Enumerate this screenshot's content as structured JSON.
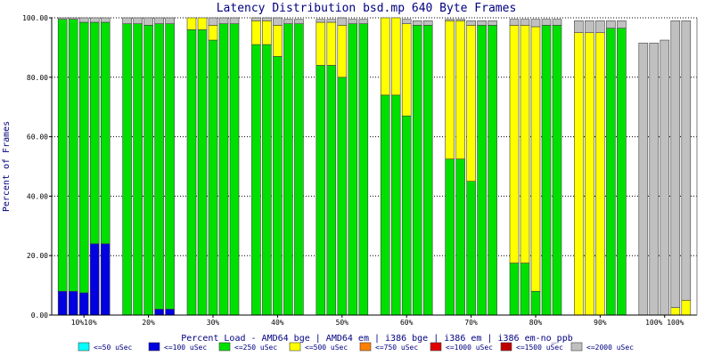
{
  "chart_data": {
    "type": "bar",
    "stacked": true,
    "title": "Latency Distribution bsd.mp 640 Byte Frames",
    "xlabel": "Percent Load - AMD64 bge | AMD64 em | i386 bge | i386 em | i386 em-no_ppb",
    "ylabel": "Percent of Frames",
    "ylim": [
      0,
      100
    ],
    "yticks": [
      "0.00",
      "20.00",
      "40.00",
      "60.00",
      "80.00",
      "100.00"
    ],
    "grid": true,
    "legend_position": "bottom",
    "group_labels": [
      "10%10%",
      "20%",
      "30%",
      "40%",
      "50%",
      "60%",
      "70%",
      "80%",
      "90%",
      "100% 100%"
    ],
    "series": [
      {
        "name": "<=50 uSec",
        "color": "#00ffff"
      },
      {
        "name": "<=100 uSec",
        "color": "#0000e0"
      },
      {
        "name": "<=250 uSec",
        "color": "#00e000"
      },
      {
        "name": "<=500 uSec",
        "color": "#ffff00"
      },
      {
        "name": "<=750 uSec",
        "color": "#ff8000"
      },
      {
        "name": "<=1000 uSec",
        "color": "#e00000"
      },
      {
        "name": "<=1500 uSec",
        "color": "#c00000"
      },
      {
        "name": "<=2000 uSec",
        "color": "#c0c0c0"
      }
    ],
    "groups": [
      {
        "label": "10%",
        "bars": [
          [
            0,
            8,
            91.5,
            0,
            0,
            0,
            0,
            0.5
          ],
          [
            0,
            8,
            91.5,
            0,
            0,
            0,
            0,
            0.5
          ],
          [
            0,
            7.5,
            91,
            0,
            0,
            0,
            0,
            1.5
          ],
          [
            0,
            24,
            74.5,
            0,
            0,
            0,
            0,
            1.5
          ],
          [
            0,
            24,
            74.5,
            0,
            0,
            0,
            0,
            1.5
          ]
        ]
      },
      {
        "label": "20%",
        "bars": [
          [
            0,
            0,
            98,
            0,
            0,
            0,
            0,
            2
          ],
          [
            0,
            0,
            98,
            0,
            0,
            0,
            0,
            2
          ],
          [
            0,
            0,
            97.5,
            0,
            0,
            0,
            0,
            2.5
          ],
          [
            0,
            2,
            96,
            0,
            0,
            0,
            0,
            2
          ],
          [
            0,
            2,
            96,
            0,
            0,
            0,
            0,
            2
          ]
        ]
      },
      {
        "label": "30%",
        "bars": [
          [
            0,
            0,
            96,
            4,
            0,
            0,
            0,
            0
          ],
          [
            0,
            0,
            96,
            4,
            0,
            0,
            0,
            0
          ],
          [
            0,
            0,
            92.5,
            5,
            0,
            0,
            0,
            2.5
          ],
          [
            0,
            0,
            98,
            0,
            0,
            0,
            0,
            2
          ],
          [
            0,
            0,
            98,
            0,
            0,
            0,
            0,
            2
          ]
        ]
      },
      {
        "label": "40%",
        "bars": [
          [
            0,
            0,
            91,
            8,
            0,
            0,
            0,
            1
          ],
          [
            0,
            0,
            91,
            8,
            0,
            0,
            0,
            1
          ],
          [
            0,
            0,
            87,
            10.5,
            0,
            0,
            0,
            2.5
          ],
          [
            0,
            0,
            98,
            0,
            0,
            0,
            0,
            1.5
          ],
          [
            0,
            0,
            98,
            0,
            0,
            0,
            0,
            1.5
          ]
        ]
      },
      {
        "label": "50%",
        "bars": [
          [
            0,
            0,
            84,
            14.5,
            0,
            0,
            0,
            1
          ],
          [
            0,
            0,
            84,
            14.5,
            0,
            0,
            0,
            1
          ],
          [
            0,
            0,
            80,
            17.5,
            0,
            0,
            0,
            2.5
          ],
          [
            0,
            0,
            98,
            0,
            0,
            0,
            0,
            1.5
          ],
          [
            0,
            0,
            98,
            0,
            0,
            0,
            0,
            1.5
          ]
        ]
      },
      {
        "label": "60%",
        "bars": [
          [
            0,
            0,
            74,
            26,
            0,
            0,
            0,
            0
          ],
          [
            0,
            0,
            74,
            26,
            0,
            0,
            0,
            0
          ],
          [
            0,
            0,
            67,
            31,
            0,
            0,
            0,
            1.5
          ],
          [
            0,
            0,
            97.5,
            0,
            0,
            0,
            0,
            1.5
          ],
          [
            0,
            0,
            97.5,
            0,
            0,
            0,
            0,
            1.5
          ]
        ]
      },
      {
        "label": "70%",
        "bars": [
          [
            0,
            0,
            52.5,
            46.5,
            0,
            0,
            0,
            0.5
          ],
          [
            0,
            0,
            52.5,
            46.5,
            0,
            0,
            0,
            0.5
          ],
          [
            0,
            0,
            45,
            52.5,
            0,
            0,
            0,
            1.5
          ],
          [
            0,
            0,
            97.5,
            0,
            0,
            0,
            0,
            1.5
          ],
          [
            0,
            0,
            97.5,
            0,
            0,
            0,
            0,
            1.5
          ]
        ]
      },
      {
        "label": "80%",
        "bars": [
          [
            0,
            0,
            17.5,
            80,
            0,
            0,
            0,
            2
          ],
          [
            0,
            0,
            17.5,
            80,
            0,
            0,
            0,
            2
          ],
          [
            0,
            0,
            8,
            89,
            0,
            0,
            0,
            2.5
          ],
          [
            0,
            0,
            97.5,
            0,
            0,
            0,
            0,
            2
          ],
          [
            0,
            0,
            97.5,
            0,
            0,
            0,
            0,
            2
          ]
        ]
      },
      {
        "label": "90%",
        "bars": [
          [
            0,
            0,
            0,
            95,
            0,
            0,
            0,
            4
          ],
          [
            0,
            0,
            0,
            95,
            0,
            0,
            0,
            4
          ],
          [
            0,
            0,
            0,
            95,
            0,
            0,
            0,
            4
          ],
          [
            0,
            0,
            96.5,
            0,
            0,
            0,
            0,
            2.5
          ],
          [
            0,
            0,
            96.5,
            0,
            0,
            0,
            0,
            2.5
          ]
        ]
      },
      {
        "label": "100%",
        "bars": [
          [
            0,
            0,
            0,
            0,
            0,
            0,
            0,
            91.5
          ],
          [
            0,
            0,
            0,
            0,
            0,
            0,
            0,
            91.5
          ],
          [
            0,
            0,
            0,
            0,
            0,
            0,
            0,
            92.5
          ],
          [
            0,
            0,
            0,
            2.5,
            0,
            0,
            0,
            96.5
          ],
          [
            0,
            0,
            0,
            5,
            0,
            0,
            0,
            94
          ]
        ]
      }
    ]
  }
}
